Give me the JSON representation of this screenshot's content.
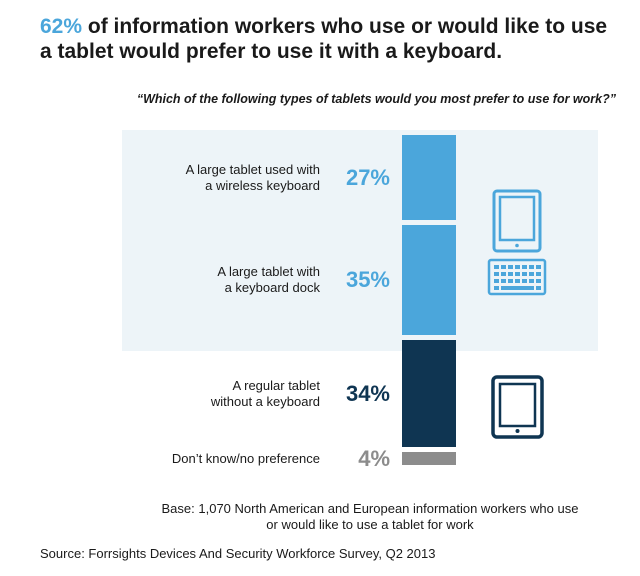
{
  "headline": {
    "highlight": "62%",
    "rest": " of information workers who use or would like to use a tablet would prefer to use it with a keyboard."
  },
  "question": "“Which of the following types of tablets would you most prefer to use for work?”",
  "base_note": {
    "line1": "Base: 1,070 North American and European information workers who use",
    "line2": "or would like to use a tablet for work"
  },
  "source": "Source: Forrsights Devices And Security Workforce Survey, Q2 2013",
  "colors": {
    "keyboard_group": "#4ba6db",
    "no_keyboard": "#0f3552",
    "no_preference": "#8c8c8c",
    "panel": "#edf4f8"
  },
  "icons": [
    "tablet-with-keyboard-icon",
    "tablet-icon"
  ],
  "chart_data": {
    "type": "bar",
    "orientation": "vertical-stack",
    "title": "62% of information workers who use or would like to use a tablet would prefer to use it with a keyboard.",
    "subtitle": "“Which of the following types of tablets would you most prefer to use for work?”",
    "categories": [
      "A large tablet used with a wireless keyboard",
      "A large tablet with a keyboard dock",
      "A regular tablet without a keyboard",
      "Don’t know/no preference"
    ],
    "label_lines": [
      [
        "A large tablet used with",
        "a wireless keyboard"
      ],
      [
        "A large tablet with",
        "a keyboard dock"
      ],
      [
        "A regular tablet",
        "without a keyboard"
      ],
      [
        "Don’t know/no preference"
      ]
    ],
    "values": [
      27,
      35,
      34,
      4
    ],
    "value_labels": [
      "27%",
      "35%",
      "34%",
      "4%"
    ],
    "unit": "%"
  }
}
